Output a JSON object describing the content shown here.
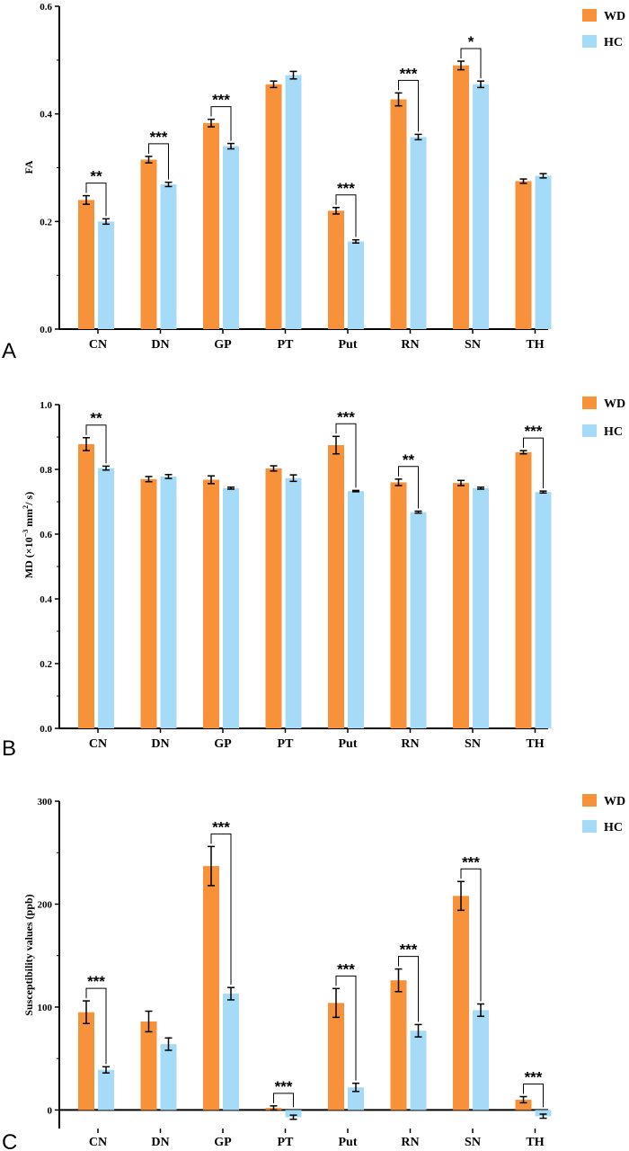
{
  "colors": {
    "WD": "#F7913A",
    "HC": "#A6DBF7",
    "axis": "#000000"
  },
  "legend": [
    {
      "name": "WD",
      "color": "#F7913A"
    },
    {
      "name": "HC",
      "color": "#A6DBF7"
    }
  ],
  "chart_data": [
    {
      "type": "bar",
      "panel": "A",
      "ylabel": "FA",
      "ylim": [
        0,
        0.6
      ],
      "yticks": [
        0,
        0.2,
        0.4,
        0.6
      ],
      "ytick_labels": [
        "0.0",
        "0.2",
        "0.4",
        "0.6"
      ],
      "categories": [
        "CN",
        "DN",
        "GP",
        "PT",
        "Put",
        "RN",
        "SN",
        "TH"
      ],
      "series": [
        {
          "name": "WD",
          "values": [
            0.24,
            0.315,
            0.383,
            0.455,
            0.22,
            0.427,
            0.49,
            0.275
          ],
          "errors": [
            0.008,
            0.006,
            0.007,
            0.006,
            0.006,
            0.012,
            0.008,
            0.004
          ]
        },
        {
          "name": "HC",
          "values": [
            0.2,
            0.269,
            0.34,
            0.472,
            0.163,
            0.357,
            0.455,
            0.285
          ],
          "errors": [
            0.005,
            0.004,
            0.005,
            0.007,
            0.003,
            0.005,
            0.006,
            0.004
          ]
        }
      ],
      "significance": [
        "**",
        "***",
        "***",
        "",
        "***",
        "***",
        "*",
        ""
      ],
      "legend_position": "top-right"
    },
    {
      "type": "bar",
      "panel": "B",
      "ylabel_parts": [
        "MD (×10",
        "−3",
        " mm",
        "2",
        "/ s)"
      ],
      "ylim": [
        0,
        1.0
      ],
      "yticks": [
        0,
        0.2,
        0.4,
        0.6,
        0.8,
        1.0
      ],
      "ytick_labels": [
        "0.0",
        "0.2",
        "0.4",
        "0.6",
        "0.8",
        "1.0"
      ],
      "categories": [
        "CN",
        "DN",
        "GP",
        "PT",
        "Put",
        "RN",
        "SN",
        "TH"
      ],
      "series": [
        {
          "name": "WD",
          "values": [
            0.878,
            0.77,
            0.768,
            0.803,
            0.875,
            0.76,
            0.758,
            0.853
          ],
          "errors": [
            0.02,
            0.008,
            0.012,
            0.008,
            0.027,
            0.01,
            0.008,
            0.005
          ]
        },
        {
          "name": "HC",
          "values": [
            0.804,
            0.778,
            0.742,
            0.773,
            0.733,
            0.668,
            0.742,
            0.73
          ],
          "errors": [
            0.006,
            0.006,
            0.003,
            0.01,
            0.002,
            0.003,
            0.003,
            0.003
          ]
        }
      ],
      "significance": [
        "**",
        "",
        "",
        "",
        "***",
        "**",
        "",
        "***"
      ],
      "legend_position": "top-right"
    },
    {
      "type": "bar",
      "panel": "C",
      "ylabel": "Susceptibility values (ppb)",
      "ylim": [
        -18,
        300
      ],
      "yticks": [
        0,
        100,
        200,
        300
      ],
      "ytick_labels": [
        "0",
        "100",
        "200",
        "300"
      ],
      "categories": [
        "CN",
        "DN",
        "GP",
        "PT",
        "Put",
        "RN",
        "SN",
        "TH"
      ],
      "series": [
        {
          "name": "WD",
          "values": [
            95,
            86,
            237,
            2,
            104,
            126,
            208,
            10
          ],
          "errors": [
            11,
            10,
            19,
            2,
            14,
            11,
            14,
            3
          ]
        },
        {
          "name": "HC",
          "values": [
            39,
            64,
            113,
            -7,
            22,
            77,
            97,
            -6
          ],
          "errors": [
            3,
            6,
            6,
            2,
            4,
            6,
            6,
            2
          ]
        }
      ],
      "significance": [
        "***",
        "",
        "***",
        "***",
        "***",
        "***",
        "***",
        "***"
      ],
      "legend_position": "top-right"
    }
  ]
}
